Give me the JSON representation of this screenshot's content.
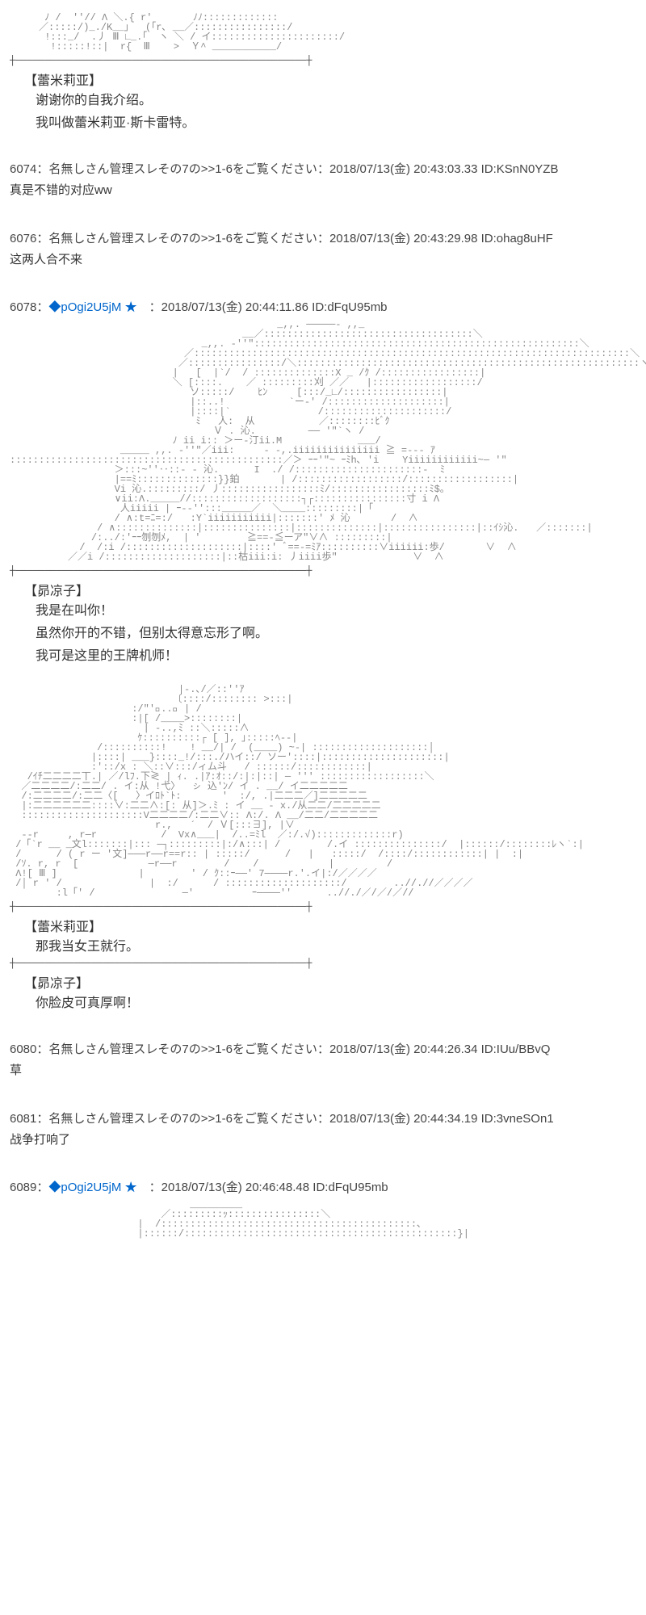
{
  "posts": [
    {
      "id": "p0",
      "ascii": "      ﾉ /  '′// Λ ＼.{ r'       ﾉﾉ:::::::::::::\n     ／:::::/)_./K__」  (｢r､ __／::::::::::::::::/\n      !:::_/  .丿 Ⅲ ∟_.｢  ヽ ＼ / イ::::::::::::::::::::::/\n       !:::::!::|  r{  Ⅲ    >  Ｙ^ ___________/\n",
      "hr1": "┼──────────────────────────────────────────────────┼",
      "speaker1": "【蕾米莉亚】",
      "lines1": [
        "谢谢你的自我介绍。",
        "我叫做蕾米莉亚·斯卡雷特。"
      ]
    },
    {
      "id": "p6074",
      "num": "6074",
      "name": "名無しさん管理スレその7の>>1-6をご覧ください",
      "date": "2018/07/13(金) 20:43:03.33",
      "uid": "ID:KSnN0YZB",
      "body": "真是不错的对应ww"
    },
    {
      "id": "p6076",
      "num": "6076",
      "name": "名無しさん管理スレその7の>>1-6をご覧ください",
      "date": "2018/07/13(金) 20:43:29.98",
      "uid": "ID:ohag8uHF",
      "body": "这两人合不来"
    },
    {
      "id": "p6078",
      "num": "6078",
      "trip": "◆pOgi2U5jM",
      "star": "★",
      "date": "2018/07/13(金) 20:44:11.86",
      "uid": "ID:dFqU95mb",
      "ascii": "                                              _,,. ─────- ,,_\n                                        __／::::::::::::::::::::::::::::::::::::＼\n                                 _,,. -''\"::::::::::::::::::::::::::::::::::::::::::::::::::::::::＼\n                              ／:::::::::::::::::::::::::::::::::::::::::::::::::::::::::::::::::::::::::::＼\n                             ／::::::::::::::::/＼:::::::::::::::::::::::::::::::::::::::::::::::::::::::::::ヽ\n                            |   [  |`/  / ::::::::::::::X _ /ｸ /:::::::::::::::::|\n                            ＼ [::::.    ／ :::::::::刈 ／／   |::::::::::::::::::/\n                               ソ:::::/    ﾋﾝ     [:::/_∟/:::::::::::::::::|\n                               |::..!           `ー-' /::::::::::::::::::::|\n                               |::::|`               /:::::::::::::::::::::/\n                                ﾐ   人:  从           ／::::::::ﾋﾞｸ\n                                   Ｖ . 沁.         ── '\"`ヽ /\n                            ﾉ ii i:: ＞ー-汀ii.M             ___/\n                   _____ ,,. -''\"／iii:     - -,.iiiiiiiiiiiiiii ≧ =--- ｱ\n:::::::::::::::::::::::::::::::::::::::::::::::／＞ ｰｰ'″~ ｰﾐh､ 'i    Yiiiiiiiiiiii~─ '\"   \n                  ＞:::~''‥::- - 沁.      I  ./ /::::::::::::::::::::::-  ﾐ\n                  |==ﾐ::::::::::::::}}鉑       | /::::::::::::::::::/::::::::::::::::::|\n                  Vi 沁.:::::::::/ 丿:::::::::::::::::ﾐ/:::::::::::::::::ﾐ$｡\n                  ∨ii:Λ._____//:::::::::::::::::::┐┌::::::::::::::::寸 i Λ\n                   人iiiii | ｰ--'′:::_____／  ＼____:::::::::|「\n                  / ∧:t=ﾆ=:/   :Y`iiiiiiiiiii|:::::::' ﾒ 沁       /  ∧\n               / ∧::::::::::::::|:::::::::::::::|::::::::::::::|::::::::::::::::|::ｲｼ沁.   ／:::::::|\n              /:../:'ｰｰ刎刎ﾒ,  | '        ≧==-≦ーア″∨∧ :::::::::|\n            /  /:i /::::::::::::::::::::|::::' ﾞ==-=ﾐｱ::::::::::∨iiiiii:歩/       ∨  ∧\n          ／／i /::::::::::::::::::::|::枯iii:i: 丿iiii歩″             ∨  ∧",
      "hr1": "┼──────────────────────────────────────────────────┼",
      "speaker1": "【昴凉子】",
      "lines1": [
        "我是在叫你！",
        "虽然你开的不错，但别太得意忘形了啊。",
        "我可是这里的王牌机师！"
      ],
      "ascii2": "                             |-.､/／::''ｱ\n                            〔::::/:::::::: >:::|\n                     :/″'ﾞ..＼ | /\n                     :|[ /____>::::::::|\n                       | -..,ﾐ ::＼:::::∧\n                      ｹ::::::::::┌ [ ], ｣:::::ﾍ--|\n               /::::::::::!    ! __/| /  (____) ~-| ::::::::::::::::::::│\n              |::::| ___}::::_!/:::./ハイ::/ ソー'::::|:::::::::::::::::::::|\n              :'::/x : ＼::∨:::/ィム斗   / ::::::/::::::::::::|\n   /ｲﾁ二二二二丅.| ／/lﾌ.下≷ | ｨ. .|ｱ:ｵ::/:|:|::| ─ ''' ::::::::::::::::::＼\n  ／二二二二/:二二/ . イ:从 !弋〉  ㇱ 込'ﾝ/ イ . __/ イ二二二二二\n  /:二二二二/:二二〈[   〉イﾛﾄ`ﾄ:       '  :/, .|二二二／]二二二二二\n  |:二二二二二二::::∨:二二∧:[: 从]＞.ﾐ : イ __ - x./从二二/二二二二二\n  :::::::::::::::::::::V二二二二/:二二∨:: Λ:/. Λ __/二二/二二二二二\n                         r.,   ´  / Ｖ[:::∃], |∨\n  --r     , r─r           /  Vx∧___|  /..=ﾐl  ／:/.√):::::::::::::r)\n /「`r __ _文l:::::::|::: ─┐:::::::::|:/∧:::| /        /.イ :::::::::::::::/  |::::::/::::::::ﾚヽ`:|\n /      / ( r ー '文]───r──r==r:: | :::::/      /   |   :::::/  /::::/::::::::::::| |  :|\n /ｿ. r, r  [            ─r──r        /    /            |         /\n Λ![ Ⅲ ]              |        ' / ｸ::ｰ──' 7────r.'.イ|:/／／／／\n /│ r ' /               |  :/      / ::::::::::::::::::::/        ..//.//／／／／\n        :l「' /               ─'          ｰ────'′      ..//./／/／/／//",
      "hr2": "┼──────────────────────────────────────────────────┼",
      "speaker2": "【蕾米莉亚】",
      "lines2": [
        "那我当女王就行。"
      ],
      "hr3": "┼──────────────────────────────────────────────────┼",
      "speaker3": "【昴凉子】",
      "lines3": [
        "你脸皮可真厚啊！"
      ]
    },
    {
      "id": "p6080",
      "num": "6080",
      "name": "名無しさん管理スレその7の>>1-6をご覧ください",
      "date": "2018/07/13(金) 20:44:26.34",
      "uid": "ID:IUu/BBvQ",
      "body": "草"
    },
    {
      "id": "p6081",
      "num": "6081",
      "name": "名無しさん管理スレその7の>>1-6をご覧ください",
      "date": "2018/07/13(金) 20:44:34.19",
      "uid": "ID:3vneSOn1",
      "body": "战争打响了"
    },
    {
      "id": "p6089",
      "num": "6089",
      "trip": "◆pOgi2U5jM",
      "star": "★",
      "date": "2018/07/13(金) 20:46:48.48",
      "uid": "ID:dFqU95mb",
      "ascii": "                               _________\n                          ／:::::::::ｯ::::::::::::::::＼\n                      |  /::::::::::::::::::::::::::::::::::::::::::::､\n                      |::::::/:::::::::::::::::::::::::::::::::::::::::::::::}|"
    }
  ],
  "colors": {
    "text": "#333333",
    "link": "#0066cc",
    "ascii": "#888888",
    "bg": "#ffffff"
  }
}
